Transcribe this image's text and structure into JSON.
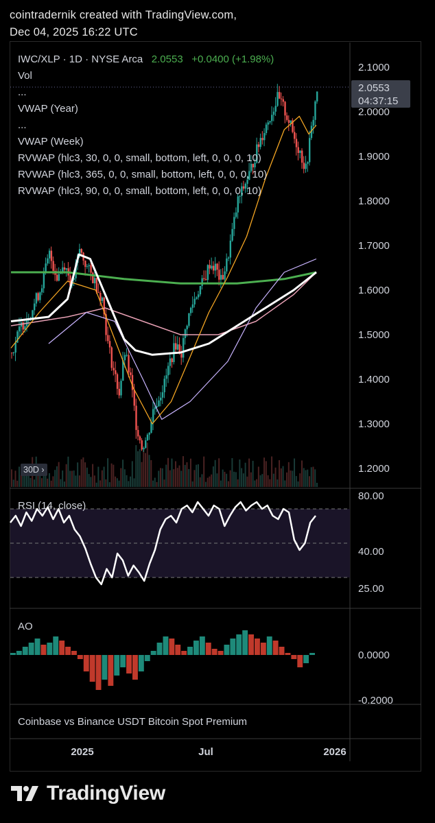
{
  "header": {
    "line1": "cointradernik created with TradingView.com,",
    "line2": "Dec 04, 2025 16:22 UTC"
  },
  "legend": {
    "symbol": "IWC/XLP · 1D · NYSE Arca",
    "price": "2.0553",
    "change": "+0.0400 (+1.98%)",
    "vol": "Vol",
    "dots1": "...",
    "vwap_year": "VWAP (Year)",
    "dots2": "...",
    "vwap_week": "VWAP (Week)",
    "rvwap1": "RVWAP (hlc3, 30, 0, 0, small, bottom, left, 0, 0, 0, 10)",
    "rvwap2": "RVWAP (hlc3, 365, 0, 0, small, bottom, left, 0, 0, 0, 10)",
    "rvwap3": "RVWAP (hlc3, 90, 0, 0, small, bottom, left, 0, 0, 0, 10)"
  },
  "price_tag": {
    "price": "2.0553",
    "countdown": "04:37:15"
  },
  "range_pill": "30D",
  "rsi_label": "RSI (14, close)",
  "ao_label": "AO",
  "premium_label": "Coinbase vs Binance USDT Bitcoin Spot Premium",
  "logo_text": "TradingView",
  "colors": {
    "background": "#000000",
    "candle_up": "#26a69a",
    "candle_down": "#ef5350",
    "price_green": "#4caf50",
    "vwap_year": "#ffffff",
    "rvwap_365": "#4caf50",
    "rvwap_90": "#e8a0b4",
    "rvwap_30": "#c9b4ff",
    "vwap_week": "#f5a623",
    "rsi_line": "#ffffff",
    "rsi_band": "#1a1428"
  },
  "chart_data": [
    {
      "type": "candlestick",
      "title": "IWC/XLP · 1D · NYSE Arca",
      "y_ticks": [
        "2.1000",
        "2.0000",
        "1.9000",
        "1.8000",
        "1.7000",
        "1.6000",
        "1.5000",
        "1.4000",
        "1.3000",
        "1.2000"
      ],
      "ylim": [
        1.18,
        2.15
      ],
      "x_ticks": [
        "2025",
        "Jul",
        "2026"
      ],
      "last_price": 2.0553,
      "price_path": [
        [
          0,
          1.46
        ],
        [
          10,
          1.52
        ],
        [
          20,
          1.55
        ],
        [
          30,
          1.6
        ],
        [
          40,
          1.68
        ],
        [
          48,
          1.63
        ],
        [
          56,
          1.66
        ],
        [
          64,
          1.61
        ],
        [
          72,
          1.69
        ],
        [
          80,
          1.65
        ],
        [
          88,
          1.62
        ],
        [
          96,
          1.58
        ],
        [
          102,
          1.48
        ],
        [
          108,
          1.42
        ],
        [
          114,
          1.37
        ],
        [
          120,
          1.46
        ],
        [
          126,
          1.4
        ],
        [
          132,
          1.3
        ],
        [
          138,
          1.25
        ],
        [
          144,
          1.27
        ],
        [
          150,
          1.33
        ],
        [
          156,
          1.36
        ],
        [
          162,
          1.39
        ],
        [
          168,
          1.44
        ],
        [
          174,
          1.48
        ],
        [
          180,
          1.46
        ],
        [
          186,
          1.53
        ],
        [
          192,
          1.57
        ],
        [
          198,
          1.6
        ],
        [
          204,
          1.62
        ],
        [
          210,
          1.66
        ],
        [
          216,
          1.65
        ],
        [
          222,
          1.62
        ],
        [
          228,
          1.66
        ],
        [
          234,
          1.73
        ],
        [
          240,
          1.8
        ],
        [
          246,
          1.83
        ],
        [
          252,
          1.86
        ],
        [
          258,
          1.9
        ],
        [
          264,
          1.94
        ],
        [
          270,
          1.97
        ],
        [
          276,
          2.0
        ],
        [
          282,
          2.03
        ],
        [
          288,
          2.01
        ],
        [
          294,
          1.98
        ],
        [
          300,
          1.94
        ],
        [
          306,
          1.91
        ],
        [
          312,
          1.87
        ],
        [
          318,
          1.96
        ],
        [
          324,
          2.05
        ]
      ],
      "indicators": {
        "vwap_year": [
          [
            0,
            1.53
          ],
          [
            40,
            1.54
          ],
          [
            60,
            1.58
          ],
          [
            72,
            1.68
          ],
          [
            84,
            1.67
          ],
          [
            96,
            1.61
          ],
          [
            108,
            1.55
          ],
          [
            120,
            1.49
          ],
          [
            132,
            1.465
          ],
          [
            150,
            1.455
          ],
          [
            180,
            1.46
          ],
          [
            210,
            1.48
          ],
          [
            240,
            1.52
          ],
          [
            270,
            1.56
          ],
          [
            300,
            1.6
          ],
          [
            324,
            1.64
          ]
        ],
        "rvwap_365": [
          [
            0,
            1.64
          ],
          [
            60,
            1.64
          ],
          [
            120,
            1.625
          ],
          [
            180,
            1.615
          ],
          [
            240,
            1.615
          ],
          [
            290,
            1.625
          ],
          [
            324,
            1.64
          ]
        ],
        "rvwap_90": [
          [
            0,
            1.52
          ],
          [
            60,
            1.54
          ],
          [
            100,
            1.56
          ],
          [
            140,
            1.53
          ],
          [
            180,
            1.5
          ],
          [
            220,
            1.5
          ],
          [
            260,
            1.53
          ],
          [
            300,
            1.59
          ],
          [
            324,
            1.64
          ]
        ],
        "rvwap_30": [
          [
            40,
            1.48
          ],
          [
            80,
            1.55
          ],
          [
            110,
            1.53
          ],
          [
            140,
            1.4
          ],
          [
            160,
            1.31
          ],
          [
            190,
            1.35
          ],
          [
            230,
            1.44
          ],
          [
            260,
            1.56
          ],
          [
            290,
            1.64
          ],
          [
            324,
            1.67
          ]
        ],
        "vwap_week": [
          [
            0,
            1.47
          ],
          [
            30,
            1.55
          ],
          [
            60,
            1.62
          ],
          [
            90,
            1.6
          ],
          [
            110,
            1.49
          ],
          [
            130,
            1.38
          ],
          [
            150,
            1.3
          ],
          [
            170,
            1.35
          ],
          [
            190,
            1.45
          ],
          [
            210,
            1.55
          ],
          [
            230,
            1.63
          ],
          [
            250,
            1.72
          ],
          [
            270,
            1.85
          ],
          [
            290,
            1.96
          ],
          [
            306,
            1.99
          ],
          [
            316,
            1.95
          ],
          [
            324,
            1.97
          ]
        ]
      }
    },
    {
      "type": "line",
      "title": "RSI (14, close)",
      "y_ticks": [
        "80.00",
        "40.00",
        "25.00"
      ],
      "bands": [
        70,
        50,
        30
      ],
      "values": [
        62,
        66,
        60,
        68,
        63,
        70,
        66,
        71,
        64,
        70,
        62,
        66,
        58,
        54,
        47,
        38,
        30,
        26,
        35,
        30,
        44,
        40,
        31,
        37,
        33,
        28,
        38,
        46,
        58,
        64,
        66,
        62,
        70,
        72,
        68,
        74,
        70,
        66,
        72,
        70,
        60,
        66,
        71,
        74,
        69,
        72,
        74,
        70,
        72,
        66,
        64,
        70,
        68,
        52,
        46,
        50,
        62,
        66
      ]
    },
    {
      "type": "bar",
      "title": "AO",
      "y_ticks": [
        "0.0000",
        "-0.2000"
      ],
      "values": [
        0.01,
        0.02,
        0.04,
        0.06,
        0.08,
        0.05,
        0.06,
        0.09,
        0.07,
        0.04,
        0.02,
        -0.02,
        -0.08,
        -0.13,
        -0.17,
        -0.12,
        -0.15,
        -0.1,
        -0.06,
        -0.09,
        -0.12,
        -0.08,
        -0.03,
        0.02,
        0.06,
        0.09,
        0.08,
        0.05,
        0.02,
        0.04,
        0.07,
        0.09,
        0.06,
        0.03,
        0.02,
        0.05,
        0.08,
        0.1,
        0.12,
        0.1,
        0.08,
        0.06,
        0.09,
        0.07,
        0.04,
        0.01,
        -0.02,
        -0.06,
        -0.04,
        0.01
      ]
    }
  ]
}
